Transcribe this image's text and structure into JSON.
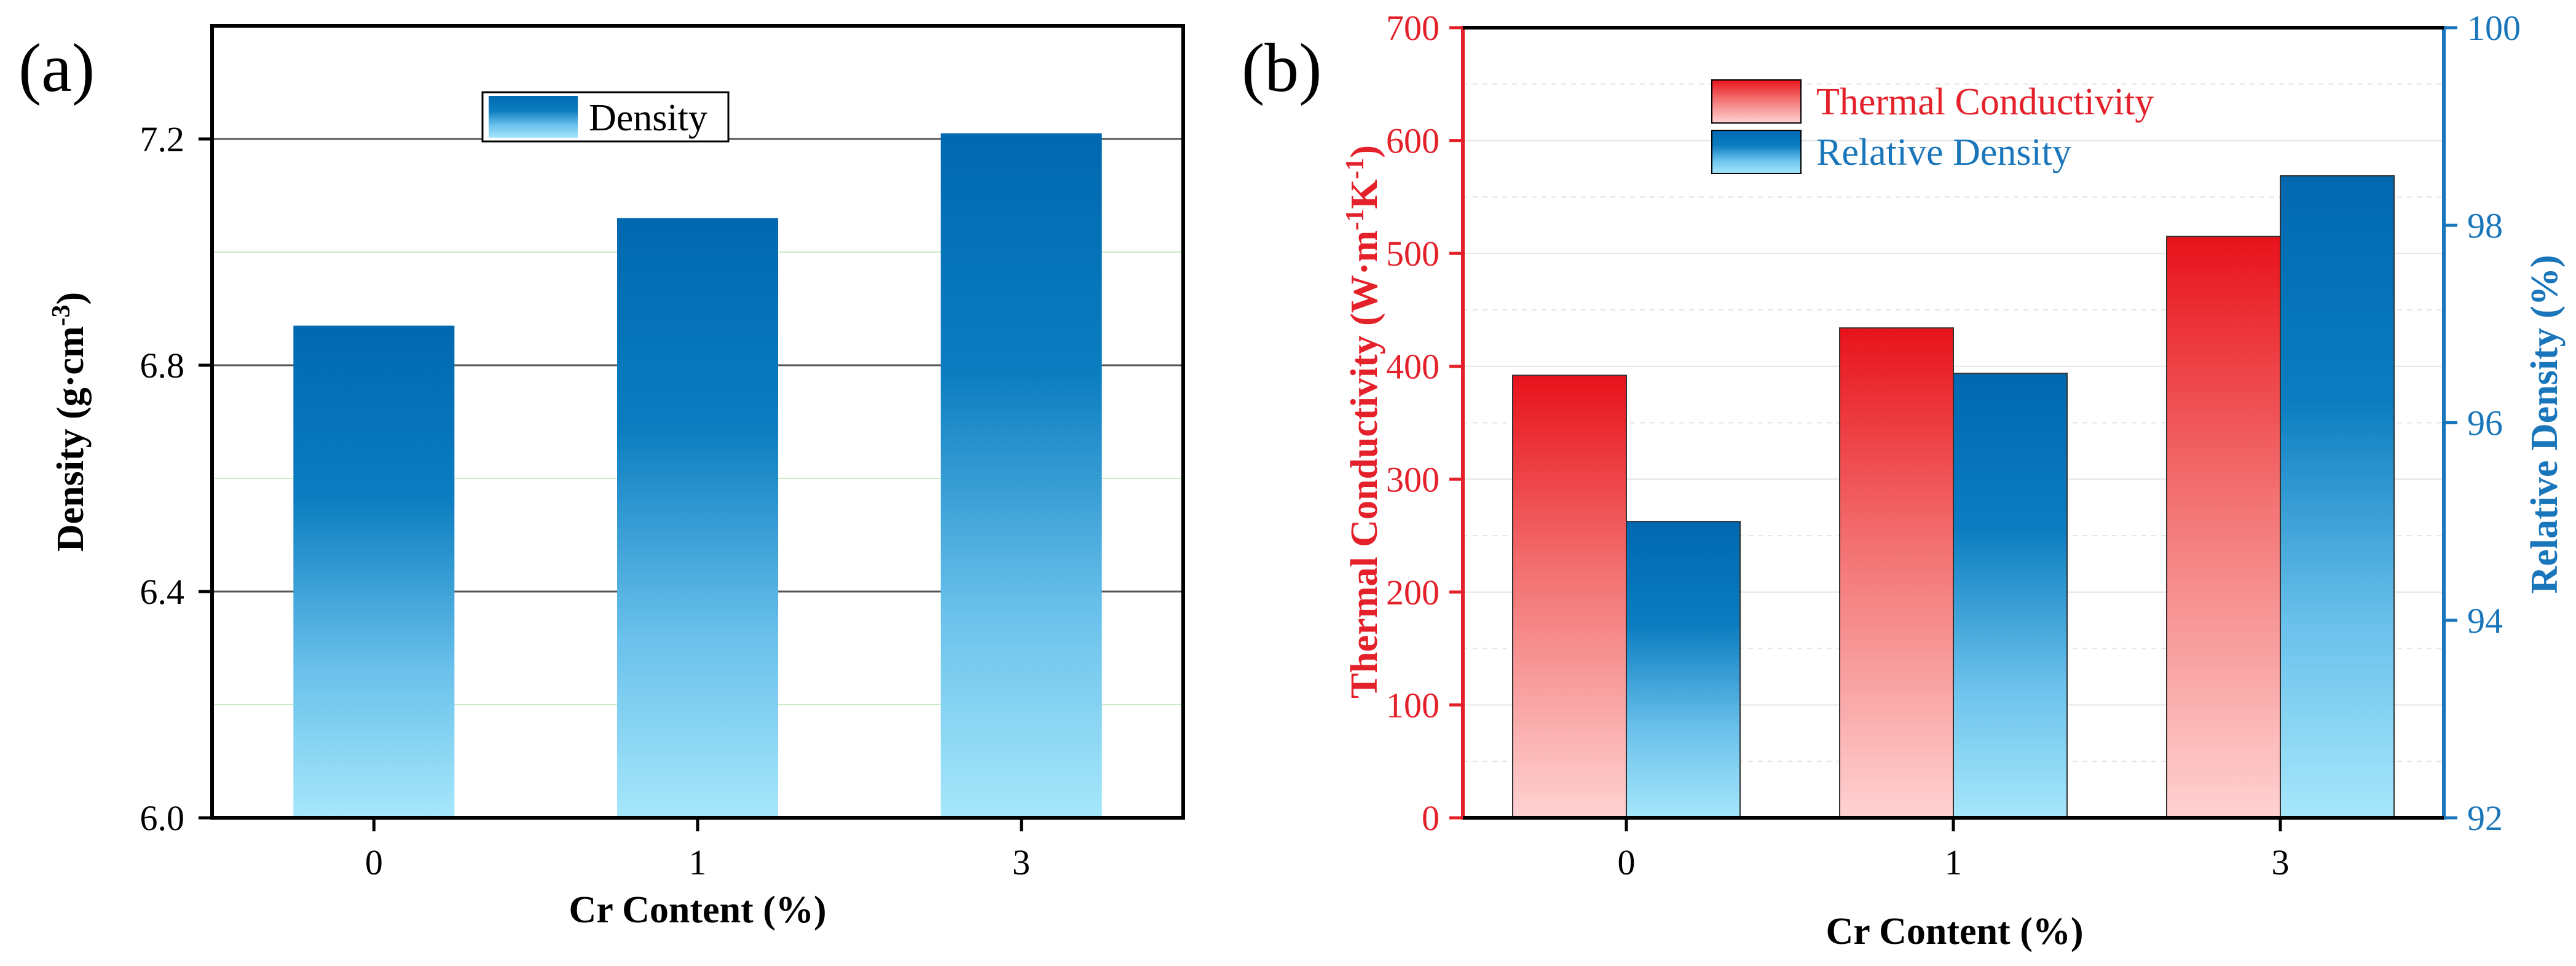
{
  "colors": {
    "axis": "#000000",
    "grid_major": "#555555",
    "grid_minor": "#c9ecc9",
    "red_accent": "#e4212a",
    "blue_accent": "#1a76ba",
    "density_top": "#0068b0",
    "density_bottom": "#a6e7fb",
    "tc_top": "#e8121b",
    "tc_bottom": "#ffd2d2",
    "rd_top": "#0068b0",
    "rd_bottom": "#a6e7fb"
  },
  "chart_data": [
    {
      "panel_label": "(a)",
      "type": "bar",
      "categories": [
        "0",
        "1",
        "3"
      ],
      "series": [
        {
          "name": "Density",
          "values": [
            6.87,
            7.06,
            7.21
          ]
        }
      ],
      "xlabel": "Cr Content (%)",
      "ylabel_main": "Density (g·cm",
      "ylabel_sup": "-3",
      "ylabel_end": ")",
      "ylim": [
        6.0,
        7.4
      ],
      "yticks": [
        "6.0",
        "6.4",
        "6.8",
        "7.2"
      ],
      "grid": true,
      "legend": "top-center"
    },
    {
      "panel_label": "(b)",
      "type": "bar",
      "categories": [
        "0",
        "1",
        "3"
      ],
      "series": [
        {
          "name": "Thermal Conductivity",
          "axis": "left",
          "values": [
            392,
            434,
            515
          ]
        },
        {
          "name": "Relative Density",
          "axis": "right",
          "values": [
            95.0,
            96.5,
            98.5
          ]
        }
      ],
      "xlabel": "Cr Content (%)",
      "ylabel_left": {
        "pre": "Thermal Conductivity (W·m",
        "sup1": "-1",
        "mid": "K",
        "sup2": "-1",
        "post": ")"
      },
      "ylabel_right": "Relative Density (%)",
      "ylim_left": [
        0,
        700
      ],
      "ylim_right": [
        92,
        100
      ],
      "yticks_left": [
        "0",
        "100",
        "200",
        "300",
        "400",
        "500",
        "600",
        "700"
      ],
      "yticks_right": [
        "92",
        "94",
        "96",
        "98",
        "100"
      ],
      "grid": true,
      "legend": "top-center"
    }
  ]
}
